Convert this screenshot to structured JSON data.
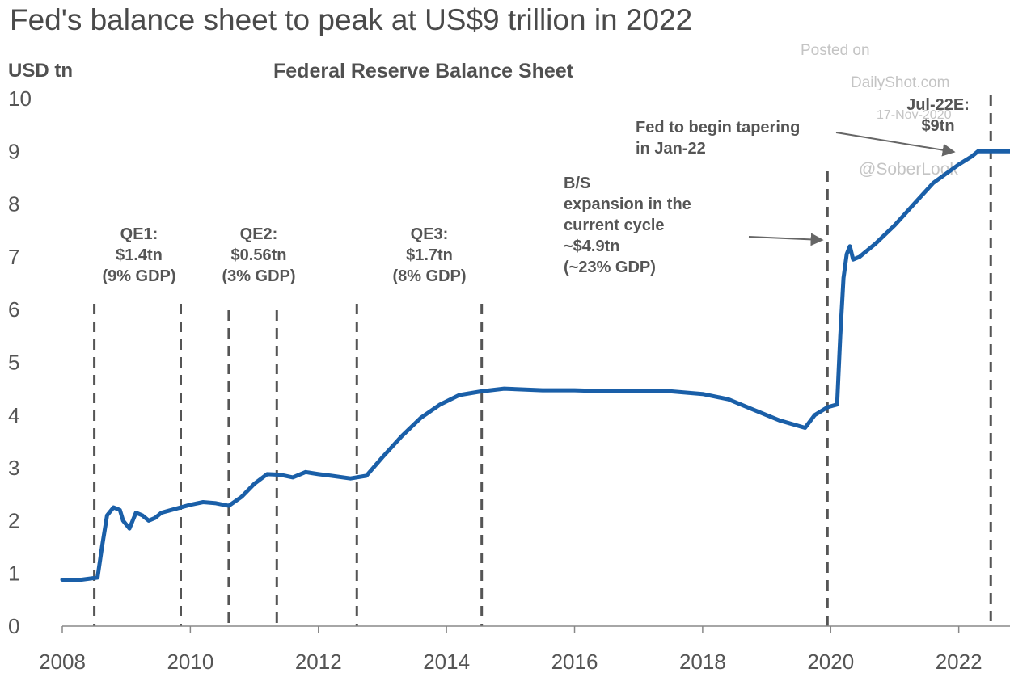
{
  "headline": "Fed's balance sheet to peak at US$9 trillion in 2022",
  "watermark": {
    "posted": "Posted on",
    "site": "DailyShot.com",
    "date": "17-Nov-2020",
    "handle": "@SoberLook"
  },
  "colors": {
    "line": "#1a5fa8",
    "guide": "#555555",
    "axis": "#888888",
    "text": "#555555"
  },
  "annotations": {
    "qe1": [
      "QE1:",
      "$1.4tn",
      "(9% GDP)"
    ],
    "qe2": [
      "QE2:",
      "$0.56tn",
      "(3% GDP)"
    ],
    "qe3": [
      "QE3:",
      "$1.7tn",
      "(8% GDP)"
    ],
    "bs": [
      "B/S",
      "expansion in the",
      "current cycle",
      "~$4.9tn",
      "(~23% GDP)"
    ],
    "taper": [
      "Fed to begin tapering",
      "in Jan-22"
    ],
    "peak": [
      "Jul-22E:",
      "$9tn"
    ]
  },
  "chart_data": {
    "type": "line",
    "title": "Federal Reserve Balance Sheet",
    "ylabel": "USD tn",
    "xlabel": "",
    "xlim": [
      2008.0,
      2022.8
    ],
    "ylim": [
      0,
      10
    ],
    "x_ticks": [
      2008,
      2010,
      2012,
      2014,
      2016,
      2018,
      2020,
      2022
    ],
    "y_ticks": [
      0,
      1,
      2,
      3,
      4,
      5,
      6,
      7,
      8,
      9,
      10
    ],
    "grid": false,
    "vlines": [
      2008.5,
      2009.85,
      2010.6,
      2011.35,
      2012.6,
      2014.55,
      2019.95,
      2022.5
    ],
    "series": [
      {
        "x": [
          2008.0,
          2008.3,
          2008.55,
          2008.62,
          2008.7,
          2008.8,
          2008.9,
          2008.95,
          2009.05,
          2009.15,
          2009.25,
          2009.35,
          2009.45,
          2009.55,
          2009.7,
          2009.85,
          2010.0,
          2010.2,
          2010.4,
          2010.6,
          2010.8,
          2011.0,
          2011.2,
          2011.4,
          2011.6,
          2011.8,
          2011.9,
          2012.0,
          2012.2,
          2012.5,
          2012.75,
          2013.0,
          2013.3,
          2013.6,
          2013.9,
          2014.2,
          2014.55,
          2014.9,
          2015.5,
          2016.0,
          2016.5,
          2017.0,
          2017.5,
          2018.0,
          2018.4,
          2018.8,
          2019.2,
          2019.6,
          2019.75,
          2019.95,
          2020.1,
          2020.15,
          2020.2,
          2020.25,
          2020.3,
          2020.35,
          2020.45,
          2020.7,
          2021.0,
          2021.3,
          2021.6,
          2022.0,
          2022.2,
          2022.3,
          2022.5,
          2022.8
        ],
        "y": [
          0.88,
          0.88,
          0.92,
          1.5,
          2.1,
          2.25,
          2.2,
          2.0,
          1.85,
          2.15,
          2.1,
          2.0,
          2.05,
          2.15,
          2.2,
          2.25,
          2.3,
          2.35,
          2.33,
          2.28,
          2.45,
          2.7,
          2.88,
          2.87,
          2.82,
          2.92,
          2.9,
          2.88,
          2.85,
          2.8,
          2.85,
          3.2,
          3.6,
          3.95,
          4.2,
          4.38,
          4.45,
          4.5,
          4.47,
          4.47,
          4.45,
          4.45,
          4.45,
          4.4,
          4.3,
          4.1,
          3.9,
          3.76,
          4.0,
          4.15,
          4.2,
          5.5,
          6.6,
          7.05,
          7.2,
          6.95,
          7.0,
          7.25,
          7.6,
          8.0,
          8.4,
          8.75,
          8.9,
          9.0,
          9.0,
          9.0
        ]
      }
    ]
  }
}
